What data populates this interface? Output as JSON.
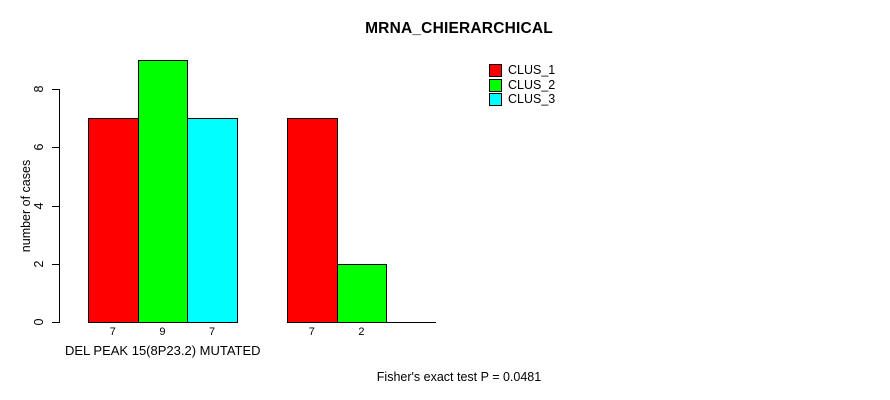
{
  "title": "MRNA_CHIERARCHICAL",
  "footer": "Fisher's exact test P = 0.0481",
  "axes": {
    "ylabel": "number of cases",
    "xlabel": "DEL PEAK 15(8P23.2) MUTATED"
  },
  "legend": {
    "position": "top-right",
    "items": [
      {
        "label": "CLUS_1",
        "color": "#ff0000"
      },
      {
        "label": "CLUS_2",
        "color": "#00ff00"
      },
      {
        "label": "CLUS_3",
        "color": "#00ffff"
      }
    ]
  },
  "chart_data": {
    "type": "bar",
    "title": "MRNA_CHIERARCHICAL",
    "ylabel": "number of cases",
    "xlabel": "DEL PEAK 15(8P23.2) MUTATED",
    "annotation": "Fisher's exact test P = 0.0481",
    "yticks": [
      0,
      2,
      4,
      6,
      8
    ],
    "ylim": [
      0,
      9.3
    ],
    "grid": false,
    "legend_position": "top-right",
    "group_count": 2,
    "series": [
      {
        "name": "CLUS_1",
        "color": "#ff0000",
        "values": [
          7,
          7
        ]
      },
      {
        "name": "CLUS_2",
        "color": "#00ff00",
        "values": [
          9,
          2
        ]
      },
      {
        "name": "CLUS_3",
        "color": "#00ffff",
        "values": [
          7,
          0
        ]
      }
    ],
    "bar_value_labels": [
      [
        "7",
        "9",
        "7"
      ],
      [
        "7",
        "2",
        ""
      ]
    ]
  }
}
